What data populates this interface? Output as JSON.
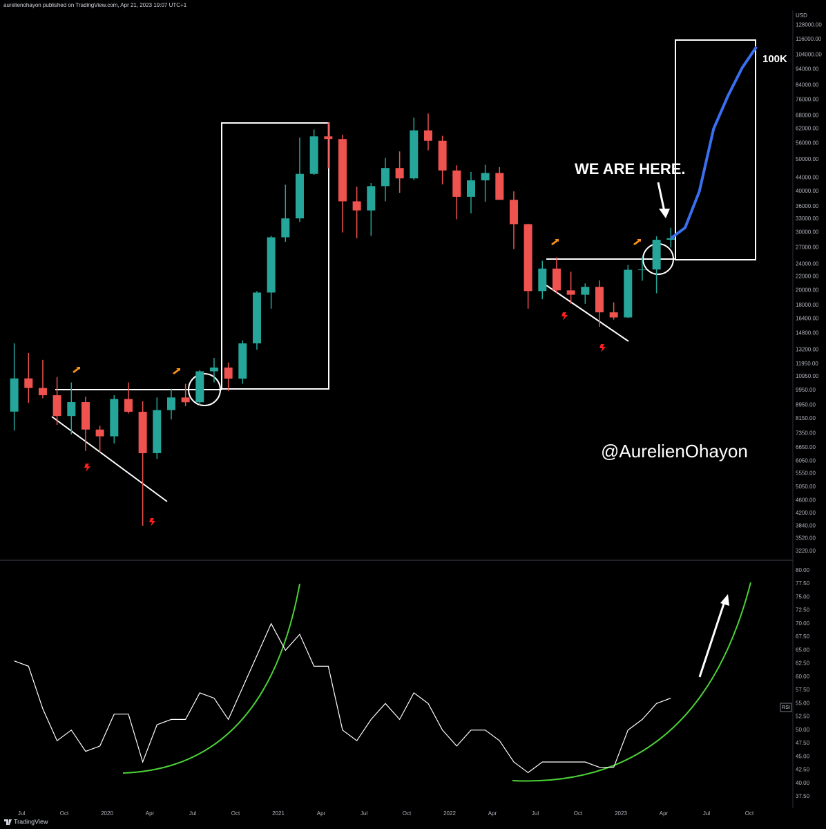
{
  "header": "aurelienohayon published on TradingView.com, Apr 21, 2023 19:07 UTC+1",
  "footer": "TradingView",
  "chart_data": [
    {
      "type": "candlestick",
      "y_label": "USD",
      "log": true,
      "up_color": "#26a69a",
      "down_color": "#ef5350",
      "annotations": [
        "WE ARE HERE.",
        "100K",
        "@AurelienOhayon"
      ],
      "x": [
        "2019-06",
        "2019-07",
        "2019-08",
        "2019-09",
        "2019-10",
        "2019-11",
        "2019-12",
        "2020-01",
        "2020-02",
        "2020-03",
        "2020-04",
        "2020-05",
        "2020-06",
        "2020-07",
        "2020-08",
        "2020-09",
        "2020-10",
        "2020-11",
        "2020-12",
        "2021-01",
        "2021-02",
        "2021-03",
        "2021-04",
        "2021-05",
        "2021-06",
        "2021-07",
        "2021-08",
        "2021-09",
        "2021-10",
        "2021-11",
        "2021-12",
        "2022-01",
        "2022-02",
        "2022-03",
        "2022-04",
        "2022-05",
        "2022-06",
        "2022-07",
        "2022-08",
        "2022-09",
        "2022-10",
        "2022-11",
        "2022-12",
        "2023-01",
        "2023-02",
        "2023-03",
        "2023-04"
      ],
      "open": [
        8560,
        10800,
        10100,
        9600,
        8300,
        9150,
        7550,
        7200,
        9350,
        8550,
        6400,
        8650,
        9450,
        9140,
        11350,
        11650,
        10780,
        13800,
        19700,
        29000,
        33100,
        45200,
        58800,
        57700,
        37300,
        35000,
        41500,
        47100,
        43800,
        61300,
        57000,
        46300,
        38500,
        43200,
        45500,
        37700,
        31800,
        19900,
        23300,
        20000,
        19400,
        20500,
        17150,
        16550,
        23100,
        23150,
        28500
      ],
      "high": [
        13800,
        12900,
        12300,
        10900,
        10500,
        9500,
        7750,
        9600,
        10500,
        9200,
        9450,
        10050,
        10400,
        11450,
        12470,
        12070,
        14100,
        19900,
        29300,
        41900,
        58300,
        61700,
        64800,
        59500,
        41300,
        42400,
        50500,
        52900,
        67000,
        69000,
        59000,
        48000,
        45800,
        48200,
        47400,
        40000,
        31900,
        24600,
        25200,
        22800,
        21000,
        21450,
        18400,
        23900,
        25250,
        29200,
        31000
      ],
      "low": [
        7500,
        9100,
        9400,
        7800,
        7300,
        6500,
        6430,
        6850,
        8450,
        3850,
        6150,
        8100,
        8900,
        8900,
        10500,
        9880,
        10400,
        13200,
        17600,
        28100,
        32300,
        44900,
        47000,
        30000,
        28800,
        29300,
        37300,
        39600,
        43300,
        53300,
        42000,
        32900,
        34300,
        37200,
        37700,
        26700,
        17600,
        18800,
        19600,
        18200,
        18200,
        15500,
        16300,
        16500,
        21400,
        19600,
        27000
      ],
      "close": [
        10800,
        10100,
        9600,
        8300,
        9150,
        7550,
        7200,
        9350,
        8550,
        6400,
        8650,
        9450,
        9140,
        11350,
        11650,
        10780,
        13800,
        19700,
        29000,
        33100,
        45200,
        58800,
        57700,
        37300,
        35000,
        41500,
        47100,
        43800,
        61300,
        57000,
        46300,
        38500,
        43200,
        45500,
        37700,
        31800,
        19900,
        23300,
        20000,
        19400,
        20500,
        17150,
        16550,
        23100,
        23150,
        28500,
        28800
      ],
      "projection": {
        "color": "#3a6ff0",
        "x": [
          "2023-04",
          "2023-05",
          "2023-06",
          "2023-07",
          "2023-08",
          "2023-09",
          "2023-10"
        ],
        "values": [
          28800,
          31000,
          40000,
          62000,
          78000,
          95000,
          110000
        ]
      },
      "ylim": [
        3068,
        142000
      ],
      "yticks": [
        {
          "value": 128000,
          "label": "128000.00"
        },
        {
          "value": 116000,
          "label": "116000.00"
        },
        {
          "value": 104000,
          "label": "104000.00"
        },
        {
          "value": 94000,
          "label": "94000.00"
        },
        {
          "value": 84000,
          "label": "84000.00"
        },
        {
          "value": 76000,
          "label": "76000.00"
        },
        {
          "value": 68000,
          "label": "68000.00"
        },
        {
          "value": 62000,
          "label": "62000.00"
        },
        {
          "value": 56000,
          "label": "56000.00"
        },
        {
          "value": 50000,
          "label": "50000.00"
        },
        {
          "value": 44000,
          "label": "44000.00"
        },
        {
          "value": 40000,
          "label": "40000.00"
        },
        {
          "value": 36000,
          "label": "36000.00"
        },
        {
          "value": 33000,
          "label": "33000.00"
        },
        {
          "value": 30000,
          "label": "30000.00"
        },
        {
          "value": 27000,
          "label": "27000.00"
        },
        {
          "value": 24000,
          "label": "24000.00"
        },
        {
          "value": 22000,
          "label": "22000.00"
        },
        {
          "value": 20000,
          "label": "20000.00"
        },
        {
          "value": 18000,
          "label": "18000.00"
        },
        {
          "value": 16400,
          "label": "16400.00"
        },
        {
          "value": 14800,
          "label": "14800.00"
        },
        {
          "value": 13200,
          "label": "13200.00"
        },
        {
          "value": 11950,
          "label": "11950.00"
        },
        {
          "value": 10950,
          "label": "10950.00"
        },
        {
          "value": 9950,
          "label": "9950.00"
        },
        {
          "value": 8950,
          "label": "8950.00"
        },
        {
          "value": 8150,
          "label": "8150.00"
        },
        {
          "value": 7350,
          "label": "7350.00"
        },
        {
          "value": 6650,
          "label": "6650.00"
        },
        {
          "value": 6050,
          "label": "6050.00"
        },
        {
          "value": 5550,
          "label": "5550.00"
        },
        {
          "value": 5050,
          "label": "5050.00"
        },
        {
          "value": 4600,
          "label": "4600.00"
        },
        {
          "value": 4200,
          "label": "4200.00"
        },
        {
          "value": 3840,
          "label": "3840.00"
        },
        {
          "value": 3520,
          "label": "3520.00"
        },
        {
          "value": 3220,
          "label": "3220.00"
        }
      ]
    },
    {
      "type": "line",
      "label": "RSI",
      "color": "#ffffff",
      "x": [
        "2019-06",
        "2019-07",
        "2019-08",
        "2019-09",
        "2019-10",
        "2019-11",
        "2019-12",
        "2020-01",
        "2020-02",
        "2020-03",
        "2020-04",
        "2020-05",
        "2020-06",
        "2020-07",
        "2020-08",
        "2020-09",
        "2020-10",
        "2020-11",
        "2020-12",
        "2021-01",
        "2021-02",
        "2021-03",
        "2021-04",
        "2021-05",
        "2021-06",
        "2021-07",
        "2021-08",
        "2021-09",
        "2021-10",
        "2021-11",
        "2021-12",
        "2022-01",
        "2022-02",
        "2022-03",
        "2022-04",
        "2022-05",
        "2022-06",
        "2022-07",
        "2022-08",
        "2022-09",
        "2022-10",
        "2022-11",
        "2022-12",
        "2023-01",
        "2023-02",
        "2023-03",
        "2023-04"
      ],
      "values": [
        63,
        62,
        54,
        48,
        50,
        46,
        47,
        53,
        53,
        44,
        51,
        52,
        52,
        57,
        56,
        52,
        58,
        64,
        70,
        65,
        68,
        62,
        62,
        50,
        48,
        52,
        55,
        52,
        57,
        55,
        50,
        47,
        50,
        50,
        48,
        44,
        42,
        44,
        44,
        44,
        44,
        43,
        43,
        50,
        52,
        55,
        56
      ],
      "ylim": [
        35.3,
        81.4
      ],
      "yticks": [
        {
          "value": 80,
          "label": "80.00"
        },
        {
          "value": 77.5,
          "label": "77.50"
        },
        {
          "value": 75,
          "label": "75.00"
        },
        {
          "value": 72.5,
          "label": "72.50"
        },
        {
          "value": 70,
          "label": "70.00"
        },
        {
          "value": 67.5,
          "label": "67.50"
        },
        {
          "value": 65,
          "label": "65.00"
        },
        {
          "value": 62.5,
          "label": "62.50"
        },
        {
          "value": 60,
          "label": "60.00"
        },
        {
          "value": 57.5,
          "label": "57.50"
        },
        {
          "value": 55,
          "label": "55.00"
        },
        {
          "value": 52.5,
          "label": "52.50"
        },
        {
          "value": 50,
          "label": "50.00"
        },
        {
          "value": 47.5,
          "label": "47.50"
        },
        {
          "value": 45,
          "label": "45.00"
        },
        {
          "value": 42.5,
          "label": "42.50"
        },
        {
          "value": 40,
          "label": "40.00"
        },
        {
          "value": 37.5,
          "label": "37.50"
        }
      ],
      "xticks": [
        {
          "value": "2019-07",
          "label": "Jul"
        },
        {
          "value": "2019-10",
          "label": "Oct"
        },
        {
          "value": "2020-01",
          "label": "2020"
        },
        {
          "value": "2020-04",
          "label": "Apr"
        },
        {
          "value": "2020-07",
          "label": "Jul"
        },
        {
          "value": "2020-10",
          "label": "Oct"
        },
        {
          "value": "2021-01",
          "label": "2021"
        },
        {
          "value": "2021-04",
          "label": "Apr"
        },
        {
          "value": "2021-07",
          "label": "Jul"
        },
        {
          "value": "2021-10",
          "label": "Oct"
        },
        {
          "value": "2022-01",
          "label": "2022"
        },
        {
          "value": "2022-04",
          "label": "Apr"
        },
        {
          "value": "2022-07",
          "label": "Jul"
        },
        {
          "value": "2022-10",
          "label": "Oct"
        },
        {
          "value": "2023-01",
          "label": "2023"
        },
        {
          "value": "2023-04",
          "label": "Apr"
        },
        {
          "value": "2023-07",
          "label": "Jul"
        },
        {
          "value": "2023-10",
          "label": "Oct"
        }
      ]
    }
  ]
}
